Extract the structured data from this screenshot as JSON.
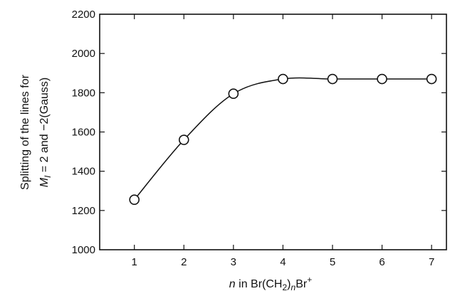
{
  "chart_data": {
    "type": "line",
    "title": "",
    "x": [
      1,
      2,
      3,
      4,
      5,
      6,
      7
    ],
    "series": [
      {
        "values": [
          1255,
          1560,
          1795,
          1870,
          1870,
          1870,
          1870
        ]
      }
    ],
    "xlim": [
      0.3,
      7.3
    ],
    "ylim": [
      1000,
      2200
    ],
    "xticks": [
      "1",
      "2",
      "3",
      "4",
      "5",
      "6",
      "7"
    ],
    "yticks": [
      "1000",
      "1200",
      "1400",
      "1600",
      "1800",
      "2000",
      "2200"
    ],
    "xlabel": {
      "prefix": "n",
      "middle": " in  Br(CH",
      "sub": "2",
      "close": ")",
      "sub2": "n",
      "end": "Br",
      "sup": "+"
    },
    "ylabel": {
      "line1": "Splitting of the lines for",
      "m": "M",
      "msub": "I",
      "rest": " = 2 and  −2(Gauss)"
    },
    "grid": false,
    "legend": "none",
    "marker": "open-circle",
    "colors": {
      "line": "#111111",
      "marker_fill": "#ffffff"
    }
  }
}
